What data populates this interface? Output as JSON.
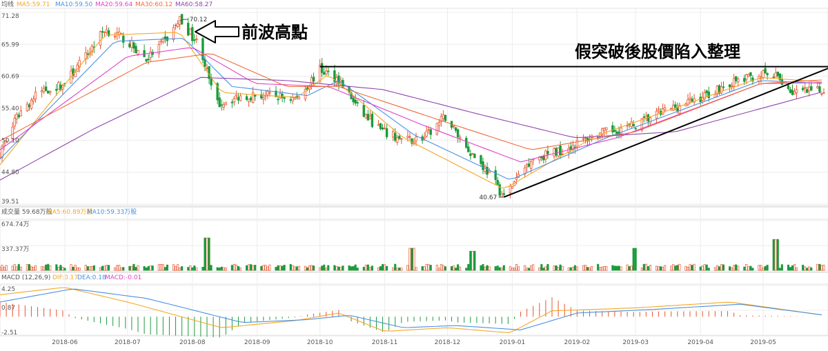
{
  "price_legend": {
    "label": "均线",
    "items": [
      {
        "text": "MA5:59.71",
        "color": "#f5a623"
      },
      {
        "text": "MA10:59.50",
        "color": "#4a90e2"
      },
      {
        "text": "MA20:59.64",
        "color": "#e040c8"
      },
      {
        "text": "MA30:60.12",
        "color": "#f06a3a"
      },
      {
        "text": "MA60:58.27",
        "color": "#8e44ad"
      }
    ]
  },
  "volume_legend": {
    "items": [
      {
        "text": "成交量 59.68万股",
        "color": "#555555"
      },
      {
        "text": "MA5:60.89万股",
        "color": "#f5a623"
      },
      {
        "text": "MA10:59.33万股",
        "color": "#4a90e2"
      }
    ]
  },
  "macd_legend": {
    "items": [
      {
        "text": "MACD (12,26,9)",
        "color": "#555555"
      },
      {
        "text": "DIF:0.17",
        "color": "#f5a623"
      },
      {
        "text": "DEA:0.18",
        "color": "#4a90e2"
      },
      {
        "text": "MACD:-0.01",
        "color": "#e040c8"
      }
    ]
  },
  "annotations": {
    "prev_high": "前波高點",
    "fake_breakout": "假突破後股價陷入整理",
    "high_label": "70.12",
    "low_label": "40.67"
  },
  "colors": {
    "up": "#e9532b",
    "down": "#1a9b3a",
    "grid": "#ececec",
    "axis_text": "#555555"
  },
  "chart_data": {
    "type": "candlestick",
    "price_axis": {
      "ticks": [
        "71.28",
        "65.99",
        "60.69",
        "55.40",
        "50.10",
        "44.80",
        "39.51"
      ],
      "ylim": [
        39.51,
        71.28
      ]
    },
    "volume_axis": {
      "ticks": [
        "674.74万",
        "337.37万"
      ],
      "ylim": [
        0,
        674.74
      ]
    },
    "macd_axis": {
      "ticks": [
        "4.25",
        "0.87",
        "-2.51"
      ],
      "ylim": [
        -2.51,
        4.25
      ]
    },
    "x_labels": [
      "2018-06",
      "2018-07",
      "2018-08",
      "2018-09",
      "2018-10",
      "2018-11",
      "2018-12",
      "2019-01",
      "2019-02",
      "2019-03",
      "2019-04",
      "2019-05"
    ],
    "close_path": [
      [
        "2018-05-01",
        48.0
      ],
      [
        "2018-05-10",
        54.5
      ],
      [
        "2018-05-20",
        58.2
      ],
      [
        "2018-05-31",
        59.2
      ],
      [
        "2018-06-10",
        63.5
      ],
      [
        "2018-06-20",
        68.5
      ],
      [
        "2018-06-30",
        66.8
      ],
      [
        "2018-07-10",
        63.5
      ],
      [
        "2018-07-20",
        67.0
      ],
      [
        "2018-07-26",
        70.12
      ],
      [
        "2018-08-05",
        65.5
      ],
      [
        "2018-08-12",
        56.0
      ],
      [
        "2018-08-25",
        57.5
      ],
      [
        "2018-09-05",
        57.5
      ],
      [
        "2018-09-20",
        57.0
      ],
      [
        "2018-10-01",
        61.8
      ],
      [
        "2018-10-10",
        60.2
      ],
      [
        "2018-10-20",
        55.0
      ],
      [
        "2018-10-31",
        51.5
      ],
      [
        "2018-11-10",
        50.0
      ],
      [
        "2018-11-20",
        50.5
      ],
      [
        "2018-11-30",
        54.0
      ],
      [
        "2018-12-10",
        49.0
      ],
      [
        "2018-12-20",
        45.0
      ],
      [
        "2018-12-28",
        40.67
      ],
      [
        "2019-01-10",
        47.0
      ],
      [
        "2019-01-25",
        48.5
      ],
      [
        "2019-02-10",
        51.0
      ],
      [
        "2019-02-28",
        52.5
      ],
      [
        "2019-03-15",
        55.0
      ],
      [
        "2019-03-31",
        57.0
      ],
      [
        "2019-04-15",
        59.5
      ],
      [
        "2019-04-30",
        61.0
      ],
      [
        "2019-05-08",
        60.5
      ],
      [
        "2019-05-15",
        58.0
      ],
      [
        "2019-05-31",
        58.3
      ]
    ],
    "ma_lines": [
      {
        "name": "MA5",
        "color": "#f5a623",
        "values": [
          [
            "2018-05-01",
            46.0
          ],
          [
            "2018-06-20",
            67.5
          ],
          [
            "2018-07-26",
            68.0
          ],
          [
            "2018-08-15",
            58.0
          ],
          [
            "2018-09-20",
            57.2
          ],
          [
            "2018-10-05",
            61.0
          ],
          [
            "2018-11-10",
            50.5
          ],
          [
            "2018-12-28",
            42.0
          ],
          [
            "2019-02-10",
            50.8
          ],
          [
            "2019-04-30",
            60.5
          ],
          [
            "2019-05-31",
            59.71
          ]
        ]
      },
      {
        "name": "MA10",
        "color": "#4a90e2",
        "values": [
          [
            "2018-05-01",
            47.0
          ],
          [
            "2018-06-25",
            66.5
          ],
          [
            "2018-07-28",
            67.0
          ],
          [
            "2018-08-20",
            59.0
          ],
          [
            "2018-09-25",
            57.5
          ],
          [
            "2018-10-10",
            60.0
          ],
          [
            "2018-11-15",
            51.0
          ],
          [
            "2018-12-31",
            43.5
          ],
          [
            "2019-02-15",
            50.5
          ],
          [
            "2019-04-30",
            60.0
          ],
          [
            "2019-05-31",
            59.5
          ]
        ]
      },
      {
        "name": "MA20",
        "color": "#e040c8",
        "values": [
          [
            "2018-05-01",
            48.5
          ],
          [
            "2018-07-01",
            64.0
          ],
          [
            "2018-08-01",
            65.5
          ],
          [
            "2018-08-31",
            59.5
          ],
          [
            "2018-10-05",
            59.0
          ],
          [
            "2018-11-20",
            52.5
          ],
          [
            "2019-01-05",
            46.5
          ],
          [
            "2019-02-20",
            50.5
          ],
          [
            "2019-04-30",
            59.5
          ],
          [
            "2019-05-31",
            59.64
          ]
        ]
      },
      {
        "name": "MA30",
        "color": "#f06a3a",
        "values": [
          [
            "2018-05-01",
            50.0
          ],
          [
            "2018-07-10",
            63.0
          ],
          [
            "2018-08-10",
            64.5
          ],
          [
            "2018-09-15",
            59.0
          ],
          [
            "2018-10-10",
            59.0
          ],
          [
            "2018-12-01",
            53.0
          ],
          [
            "2019-01-10",
            48.5
          ],
          [
            "2019-03-01",
            51.5
          ],
          [
            "2019-04-30",
            59.5
          ],
          [
            "2019-05-31",
            60.12
          ]
        ]
      },
      {
        "name": "MA60",
        "color": "#8e44ad",
        "values": [
          [
            "2018-05-01",
            43.5
          ],
          [
            "2018-06-15",
            52.0
          ],
          [
            "2018-08-05",
            60.5
          ],
          [
            "2018-09-15",
            60.0
          ],
          [
            "2018-10-31",
            58.5
          ],
          [
            "2018-12-15",
            54.5
          ],
          [
            "2019-01-31",
            50.5
          ],
          [
            "2019-03-20",
            51.5
          ],
          [
            "2019-05-31",
            58.27
          ]
        ]
      }
    ],
    "high_point": {
      "date": "2018-07-26",
      "value": 70.12
    },
    "low_point": {
      "date": "2018-12-28",
      "value": 40.67
    },
    "resistance_line": {
      "start": [
        "2018-10-01",
        62.3
      ],
      "end": [
        "2019-06-01",
        62.3
      ]
    },
    "support_line": {
      "start": [
        "2018-12-28",
        40.67
      ],
      "end": [
        "2019-06-01",
        62.0
      ]
    },
    "volume_spikes": [
      [
        "2018-08-08",
        440
      ],
      [
        "2018-11-14",
        300
      ],
      [
        "2018-12-13",
        260
      ],
      [
        "2019-03-01",
        300
      ],
      [
        "2019-05-07",
        420
      ]
    ],
    "volume_base": 60,
    "macd": {
      "dif": [
        [
          "2018-05-01",
          3.0
        ],
        [
          "2018-06-01",
          4.0
        ],
        [
          "2018-07-01",
          2.0
        ],
        [
          "2018-08-15",
          -1.5
        ],
        [
          "2018-09-20",
          -0.5
        ],
        [
          "2018-10-10",
          0.5
        ],
        [
          "2018-11-01",
          -2.0
        ],
        [
          "2018-12-01",
          -1.5
        ],
        [
          "2018-12-31",
          -2.2
        ],
        [
          "2019-01-20",
          0.8
        ],
        [
          "2019-03-01",
          1.2
        ],
        [
          "2019-04-15",
          2.0
        ],
        [
          "2019-05-31",
          0.17
        ]
      ],
      "dea": [
        [
          "2018-05-01",
          2.0
        ],
        [
          "2018-06-05",
          3.8
        ],
        [
          "2018-07-10",
          2.5
        ],
        [
          "2018-08-25",
          -0.8
        ],
        [
          "2018-09-25",
          -0.4
        ],
        [
          "2018-10-15",
          0.2
        ],
        [
          "2018-11-10",
          -1.5
        ],
        [
          "2018-12-05",
          -1.2
        ],
        [
          "2019-01-05",
          -1.8
        ],
        [
          "2019-02-01",
          0.5
        ],
        [
          "2019-03-10",
          1.0
        ],
        [
          "2019-04-20",
          1.7
        ],
        [
          "2019-05-31",
          0.18
        ]
      ]
    }
  }
}
